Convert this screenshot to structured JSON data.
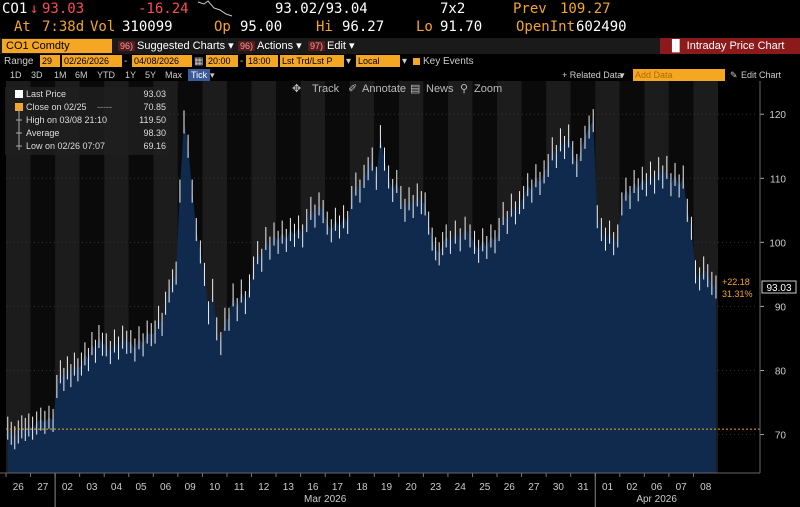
{
  "quote": {
    "ticker": "CO1",
    "last": "93.03",
    "change": "-16.24",
    "bid_ask": "93.02/93.04",
    "size": "7x2",
    "prev_label": "Prev",
    "prev": "109.27",
    "at_label": "At",
    "at_time": "7:38d",
    "vol_label": "Vol",
    "vol": "310099",
    "op_label": "Op",
    "op": "95.00",
    "hi_label": "Hi",
    "hi": "96.27",
    "lo_label": "Lo",
    "lo": "91.70",
    "oi_label": "OpenInt",
    "oi": "602490"
  },
  "cmdbar": {
    "security": "CO1 Comdty",
    "suggested_num": "96)",
    "suggested": "Suggested Charts",
    "actions_num": "96)",
    "actions": "Actions",
    "edit_num": "97)",
    "edit": "Edit",
    "title": "Intraday Price Chart"
  },
  "toolbar": {
    "range_label": "Range",
    "range_num": "29",
    "start_date": "02/26/2026",
    "end_date": "04/08/2026",
    "start_time": "20:00",
    "end_time": "18:00",
    "field": "Lst Trd/Lst P",
    "currency": "Local CCY",
    "key_events": "Key Events"
  },
  "periods": {
    "items": [
      "1D",
      "3D",
      "1M",
      "6M",
      "YTD",
      "1Y",
      "5Y",
      "Max"
    ],
    "active": "Tick",
    "related": "+ Related Data",
    "add_data": "Add Data",
    "edit_chart": "Edit Chart"
  },
  "charttools": {
    "track": "Track",
    "annotate": "Annotate",
    "news": "News",
    "zoom": "Zoom"
  },
  "legend": {
    "last_price_label": "Last Price",
    "last_price": "93.03",
    "close_label": "Close on 02/25",
    "close": "70.85",
    "high_label": "High on 03/08 21:10",
    "high": "119.50",
    "avg_label": "Average",
    "avg": "98.30",
    "low_label": "Low on 02/26 07:07",
    "low": "69.16"
  },
  "colors": {
    "accent": "#f5a623",
    "area": "#0f2a4d",
    "line": "#ffffff",
    "negative": "#ff4d4d",
    "title_bar": "#8b1a1a"
  },
  "chart_data": {
    "type": "area",
    "ylim": [
      64,
      123
    ],
    "yticks": [
      70,
      80,
      90,
      100,
      110,
      120
    ],
    "reference_line": 70.85,
    "last_value": 93.03,
    "change_label": "+22.18",
    "change_pct_label": "31.31%",
    "x_labels": [
      "26",
      "27",
      "02",
      "03",
      "04",
      "05",
      "06",
      "09",
      "10",
      "11",
      "12",
      "13",
      "16",
      "17",
      "18",
      "19",
      "20",
      "23",
      "24",
      "25",
      "26",
      "27",
      "30",
      "31",
      "01",
      "02",
      "06",
      "07",
      "08"
    ],
    "month_labels": [
      "Mar 2026",
      "Apr 2026"
    ],
    "days": [
      {
        "label": "26",
        "values": [
          71.0,
          70.2,
          69.5,
          70.4,
          71.2,
          70.8,
          71.5
        ]
      },
      {
        "label": "27",
        "values": [
          71.0,
          71.8,
          72.4,
          71.9,
          72.7,
          72.2
        ]
      },
      {
        "label": "02",
        "values": [
          77.5,
          79.8,
          78.6,
          80.4,
          79.2,
          81.0,
          80.1
        ]
      },
      {
        "label": "03",
        "values": [
          81.0,
          82.6,
          81.7,
          84.2,
          83.0,
          85.3,
          84.1
        ]
      },
      {
        "label": "04",
        "values": [
          84.0,
          82.8,
          84.6,
          83.5,
          85.2,
          84.4
        ]
      },
      {
        "label": "05",
        "values": [
          84.5,
          83.2,
          85.1,
          84.0,
          86.0,
          85.6
        ]
      },
      {
        "label": "06",
        "values": [
          86.0,
          88.3,
          87.2,
          90.5,
          92.4,
          94.0,
          95.2
        ]
      },
      {
        "label": "09",
        "values": [
          108.0,
          118.8,
          115.0,
          108.0,
          102.0,
          98.5
        ]
      },
      {
        "label": "10",
        "values": [
          95.0,
          89.0,
          92.5,
          86.5,
          84.2,
          88.0
        ]
      },
      {
        "label": "11",
        "values": [
          88.0,
          91.8,
          89.5,
          92.4,
          90.6,
          93.2
        ]
      },
      {
        "label": "12",
        "values": [
          96.0,
          98.4,
          97.2,
          100.6,
          99.1,
          101.3
        ]
      },
      {
        "label": "13",
        "values": [
          100.0,
          101.6,
          100.3,
          102.0,
          101.1,
          102.4
        ]
      },
      {
        "label": "16",
        "values": [
          101.0,
          103.4,
          105.3,
          104.1,
          106.0,
          104.8
        ]
      },
      {
        "label": "17",
        "values": [
          103.0,
          101.8,
          103.6,
          102.4,
          104.0,
          103.1
        ]
      },
      {
        "label": "18",
        "values": [
          107.0,
          109.1,
          108.0,
          110.3,
          111.5,
          113.0
        ]
      },
      {
        "label": "19",
        "values": [
          110.0,
          116.5,
          113.0,
          110.2,
          108.1,
          109.5
        ]
      },
      {
        "label": "20",
        "values": [
          107.0,
          105.0,
          106.8,
          105.6,
          107.4,
          106.2
        ]
      },
      {
        "label": "23",
        "values": [
          106.0,
          103.0,
          100.5,
          99.0,
          98.2,
          99.8,
          101.0
        ]
      },
      {
        "label": "24",
        "values": [
          100.0,
          101.6,
          100.4,
          102.2,
          101.0
        ]
      },
      {
        "label": "25",
        "values": [
          100.0,
          98.6,
          100.4,
          99.2,
          101.0,
          100.1
        ]
      },
      {
        "label": "26",
        "values": [
          102.0,
          104.5,
          103.1,
          105.8,
          104.6,
          106.2
        ]
      },
      {
        "label": "27",
        "values": [
          107.0,
          109.0,
          108.0,
          110.4,
          109.2,
          111.0
        ]
      },
      {
        "label": "30",
        "values": [
          112.0,
          114.6,
          113.4,
          116.0,
          114.8,
          116.6
        ]
      },
      {
        "label": "31",
        "values": [
          114.0,
          112.0,
          114.5,
          116.4,
          118.0,
          119.0
        ]
      },
      {
        "label": "01",
        "values": [
          104.0,
          102.0,
          100.5,
          101.6,
          99.8,
          101.0
        ]
      },
      {
        "label": "02",
        "values": [
          106.0,
          108.3,
          107.0,
          109.5,
          108.2,
          110.0
        ]
      },
      {
        "label": "06",
        "values": [
          109.0,
          110.8,
          109.4,
          111.5,
          110.2,
          111.7
        ]
      },
      {
        "label": "07",
        "values": [
          109.0,
          110.6,
          108.8,
          110.2,
          105.0,
          102.2
        ]
      },
      {
        "label": "08",
        "values": [
          95.4,
          94.3,
          96.0,
          94.8,
          93.6,
          93.03
        ]
      }
    ]
  }
}
